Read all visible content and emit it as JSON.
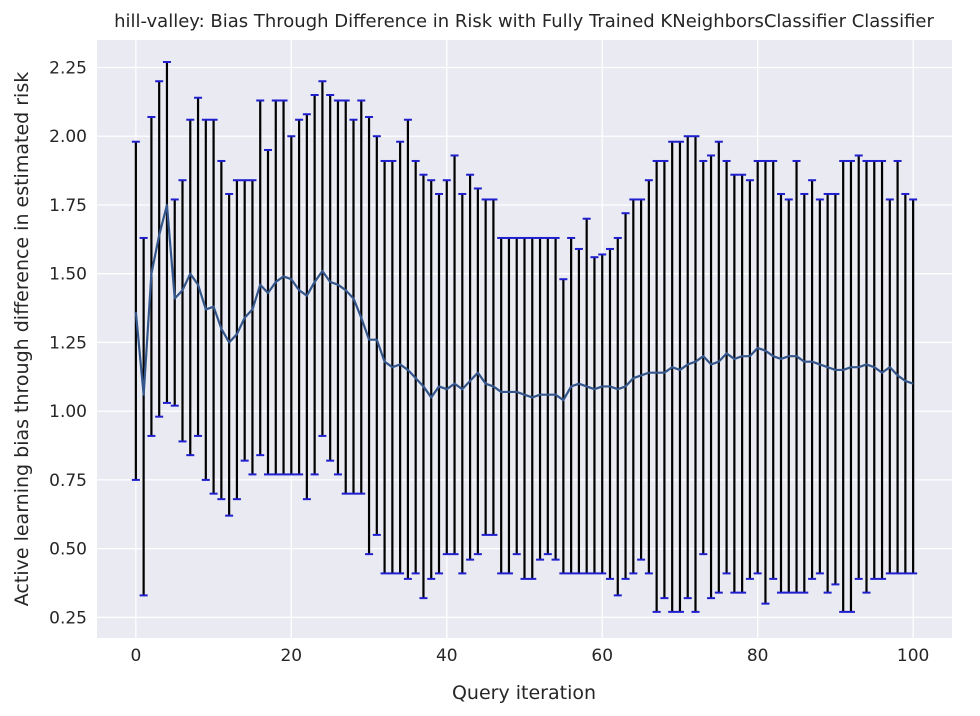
{
  "chart_data": {
    "type": "line",
    "title": "hill-valley: Bias Through Difference in Risk with Fully Trained KNeighborsClassifier Classifier",
    "xlabel": "Query iteration",
    "ylabel": "Active learning bias through difference in estimated risk",
    "xlim": [
      -5,
      105
    ],
    "ylim": [
      0.175,
      2.35
    ],
    "xticks": [
      0,
      20,
      40,
      60,
      80,
      100
    ],
    "yticks": [
      0.25,
      0.5,
      0.75,
      1.0,
      1.25,
      1.5,
      1.75,
      2.0,
      2.25
    ],
    "grid": true,
    "legend": "none",
    "colors": {
      "background": "#eaeaf2",
      "grid": "#ffffff",
      "line": "#34568b",
      "errorbar": "#000000",
      "cap": "#1f1fcf"
    },
    "x": [
      0,
      1,
      2,
      3,
      4,
      5,
      6,
      7,
      8,
      9,
      10,
      11,
      12,
      13,
      14,
      15,
      16,
      17,
      18,
      19,
      20,
      21,
      22,
      23,
      24,
      25,
      26,
      27,
      28,
      29,
      30,
      31,
      32,
      33,
      34,
      35,
      36,
      37,
      38,
      39,
      40,
      41,
      42,
      43,
      44,
      45,
      46,
      47,
      48,
      49,
      50,
      51,
      52,
      53,
      54,
      55,
      56,
      57,
      58,
      59,
      60,
      61,
      62,
      63,
      64,
      65,
      66,
      67,
      68,
      69,
      70,
      71,
      72,
      73,
      74,
      75,
      76,
      77,
      78,
      79,
      80,
      81,
      82,
      83,
      84,
      85,
      86,
      87,
      88,
      89,
      90,
      91,
      92,
      93,
      94,
      95,
      96,
      97,
      98,
      99,
      100
    ],
    "y": [
      1.36,
      1.06,
      1.5,
      1.64,
      1.75,
      1.41,
      1.44,
      1.5,
      1.46,
      1.37,
      1.38,
      1.3,
      1.25,
      1.28,
      1.34,
      1.37,
      1.46,
      1.43,
      1.47,
      1.49,
      1.48,
      1.44,
      1.42,
      1.47,
      1.51,
      1.47,
      1.46,
      1.44,
      1.41,
      1.34,
      1.26,
      1.26,
      1.18,
      1.16,
      1.17,
      1.15,
      1.12,
      1.09,
      1.05,
      1.09,
      1.08,
      1.1,
      1.08,
      1.11,
      1.14,
      1.1,
      1.09,
      1.07,
      1.07,
      1.07,
      1.06,
      1.05,
      1.06,
      1.06,
      1.06,
      1.04,
      1.09,
      1.1,
      1.09,
      1.08,
      1.09,
      1.09,
      1.08,
      1.09,
      1.12,
      1.13,
      1.14,
      1.14,
      1.14,
      1.16,
      1.15,
      1.17,
      1.18,
      1.2,
      1.17,
      1.18,
      1.21,
      1.19,
      1.2,
      1.2,
      1.23,
      1.22,
      1.2,
      1.19,
      1.2,
      1.2,
      1.18,
      1.18,
      1.17,
      1.16,
      1.15,
      1.15,
      1.16,
      1.16,
      1.17,
      1.16,
      1.14,
      1.16,
      1.13,
      1.11,
      1.1
    ],
    "upper": [
      1.98,
      1.63,
      2.07,
      2.2,
      2.27,
      1.77,
      1.84,
      2.06,
      2.14,
      2.06,
      2.06,
      1.91,
      1.79,
      1.84,
      1.84,
      1.84,
      2.13,
      1.95,
      2.13,
      2.13,
      2.0,
      2.06,
      2.08,
      2.15,
      2.2,
      2.15,
      2.13,
      2.13,
      2.06,
      2.13,
      2.07,
      2.0,
      1.91,
      1.91,
      1.98,
      2.06,
      1.91,
      1.86,
      1.84,
      1.79,
      1.84,
      1.93,
      1.79,
      1.86,
      1.81,
      1.77,
      1.77,
      1.63,
      1.63,
      1.63,
      1.63,
      1.63,
      1.63,
      1.63,
      1.63,
      1.48,
      1.63,
      1.59,
      1.7,
      1.56,
      1.57,
      1.59,
      1.63,
      1.72,
      1.77,
      1.77,
      1.84,
      1.91,
      1.91,
      1.98,
      1.98,
      2.0,
      2.0,
      1.91,
      1.93,
      1.98,
      1.91,
      1.86,
      1.86,
      1.84,
      1.91,
      1.91,
      1.91,
      1.79,
      1.77,
      1.91,
      1.79,
      1.84,
      1.77,
      1.79,
      1.79,
      1.91,
      1.91,
      1.93,
      1.91,
      1.91,
      1.91,
      1.77,
      1.91,
      1.79,
      1.77
    ],
    "lower": [
      0.75,
      0.33,
      0.91,
      0.98,
      1.03,
      1.02,
      0.89,
      0.84,
      0.91,
      0.75,
      0.7,
      0.68,
      0.62,
      0.68,
      0.82,
      0.77,
      0.84,
      0.77,
      0.77,
      0.77,
      0.77,
      0.77,
      0.68,
      0.77,
      0.91,
      0.82,
      0.77,
      0.7,
      0.7,
      0.7,
      0.48,
      0.55,
      0.41,
      0.41,
      0.41,
      0.39,
      0.41,
      0.32,
      0.39,
      0.41,
      0.48,
      0.48,
      0.41,
      0.46,
      0.48,
      0.55,
      0.55,
      0.41,
      0.41,
      0.48,
      0.39,
      0.39,
      0.46,
      0.48,
      0.46,
      0.41,
      0.41,
      0.41,
      0.41,
      0.41,
      0.41,
      0.39,
      0.33,
      0.39,
      0.41,
      0.46,
      0.41,
      0.27,
      0.32,
      0.27,
      0.27,
      0.32,
      0.27,
      0.48,
      0.32,
      0.34,
      0.41,
      0.34,
      0.34,
      0.39,
      0.41,
      0.3,
      0.39,
      0.34,
      0.34,
      0.34,
      0.34,
      0.39,
      0.41,
      0.34,
      0.37,
      0.27,
      0.27,
      0.39,
      0.34,
      0.39,
      0.39,
      0.41,
      0.41,
      0.41,
      0.41
    ]
  }
}
